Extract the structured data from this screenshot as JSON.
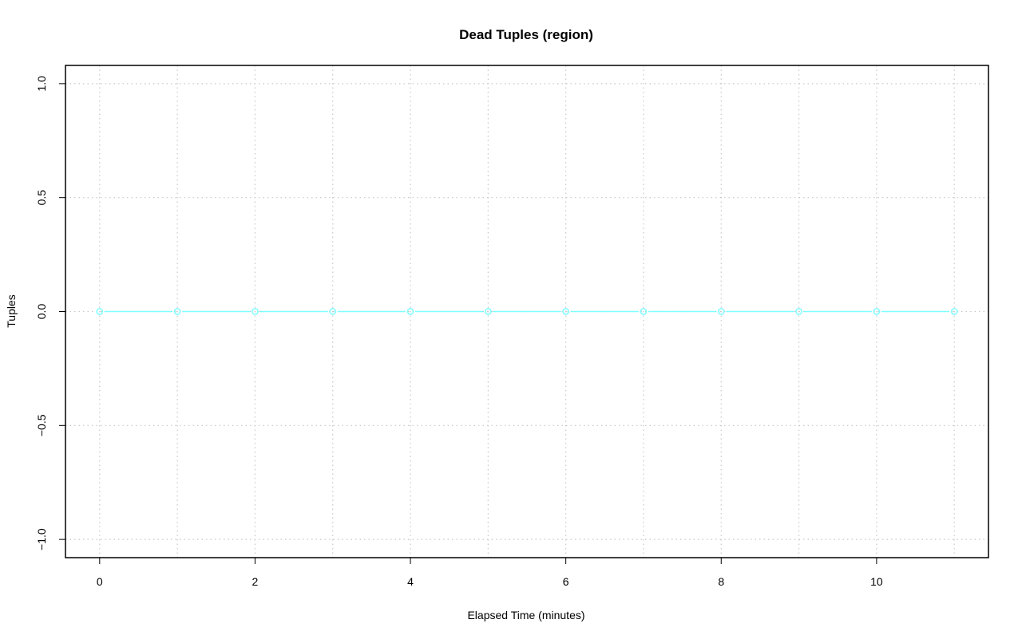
{
  "chart_data": {
    "type": "line",
    "title": "Dead Tuples (region)",
    "xlabel": "Elapsed Time (minutes)",
    "ylabel": "Tuples",
    "xlim": [
      -0.44,
      11.44
    ],
    "ylim": [
      -1.08,
      1.08
    ],
    "xticks": [
      0,
      2,
      4,
      6,
      8,
      10
    ],
    "xtick_labels": [
      "0",
      "2",
      "4",
      "6",
      "8",
      "10"
    ],
    "yticks": [
      -1.0,
      -0.5,
      0.0,
      0.5,
      1.0
    ],
    "ytick_labels": [
      "−1.0",
      "−0.5",
      "0.0",
      "0.5",
      "1.0"
    ],
    "xgrid": [
      0,
      1,
      2,
      3,
      4,
      5,
      6,
      7,
      8,
      9,
      10,
      11
    ],
    "grid": true,
    "series": [
      {
        "x": [
          0,
          1,
          2,
          3,
          4,
          5,
          6,
          7,
          8,
          9,
          10,
          11
        ],
        "y": [
          0,
          0,
          0,
          0,
          0,
          0,
          0,
          0,
          0,
          0,
          0,
          0
        ],
        "color": "#7fffff",
        "marker": "open-circle"
      }
    ]
  }
}
